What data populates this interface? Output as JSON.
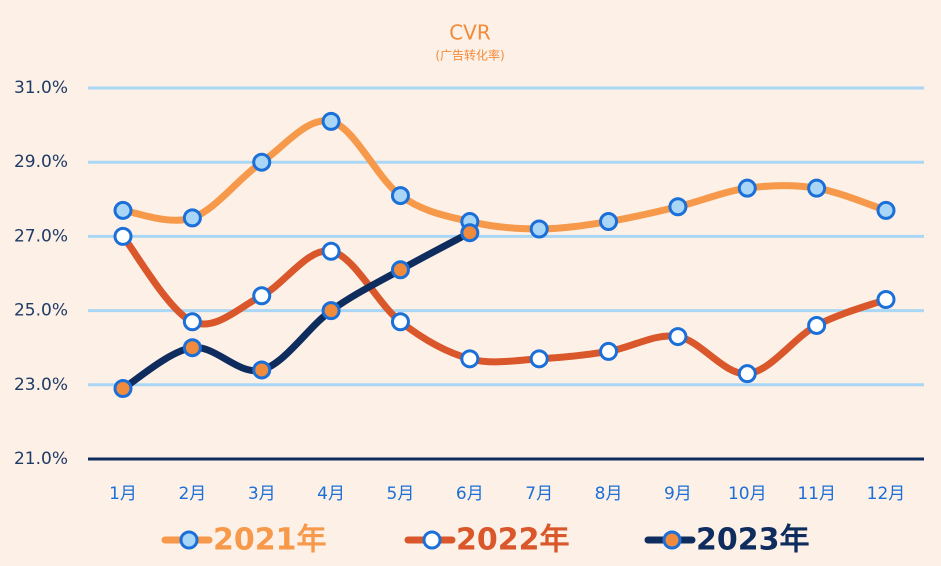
{
  "chart_data": {
    "type": "line",
    "title": "CVR",
    "subtitle": "(广告转化率)",
    "categories": [
      "1月",
      "2月",
      "3月",
      "4月",
      "5月",
      "6月",
      "7月",
      "8月",
      "9月",
      "10月",
      "11月",
      "12月"
    ],
    "series": [
      {
        "name": "2021年",
        "color": "#f7994a",
        "marker_fill": "#a9d6f7",
        "values": [
          27.7,
          27.5,
          29.0,
          30.1,
          28.1,
          27.4,
          27.2,
          27.4,
          27.8,
          28.3,
          28.3,
          27.7
        ]
      },
      {
        "name": "2022年",
        "color": "#d9572a",
        "marker_fill": "#ffffff",
        "values": [
          27.0,
          24.7,
          25.4,
          26.6,
          24.7,
          23.7,
          23.7,
          23.9,
          24.3,
          23.3,
          24.6,
          25.3
        ]
      },
      {
        "name": "2023年",
        "color": "#0e2d5e",
        "marker_fill": "#f08a3c",
        "values": [
          22.9,
          24.0,
          23.4,
          25.0,
          26.1,
          27.1,
          null,
          null,
          null,
          null,
          null,
          null
        ]
      }
    ],
    "ylim": [
      21,
      31
    ],
    "yticks": [
      {
        "value": 21,
        "label": "21.0%"
      },
      {
        "value": 23,
        "label": "23.0%"
      },
      {
        "value": 25,
        "label": "25.0%"
      },
      {
        "value": 27,
        "label": "27.0%"
      },
      {
        "value": 29,
        "label": "29.0%"
      },
      {
        "value": 31,
        "label": "31.0%"
      }
    ],
    "grid": true,
    "marker_stroke": "#1a6fd8",
    "axis_color": "#0e2d5e"
  }
}
